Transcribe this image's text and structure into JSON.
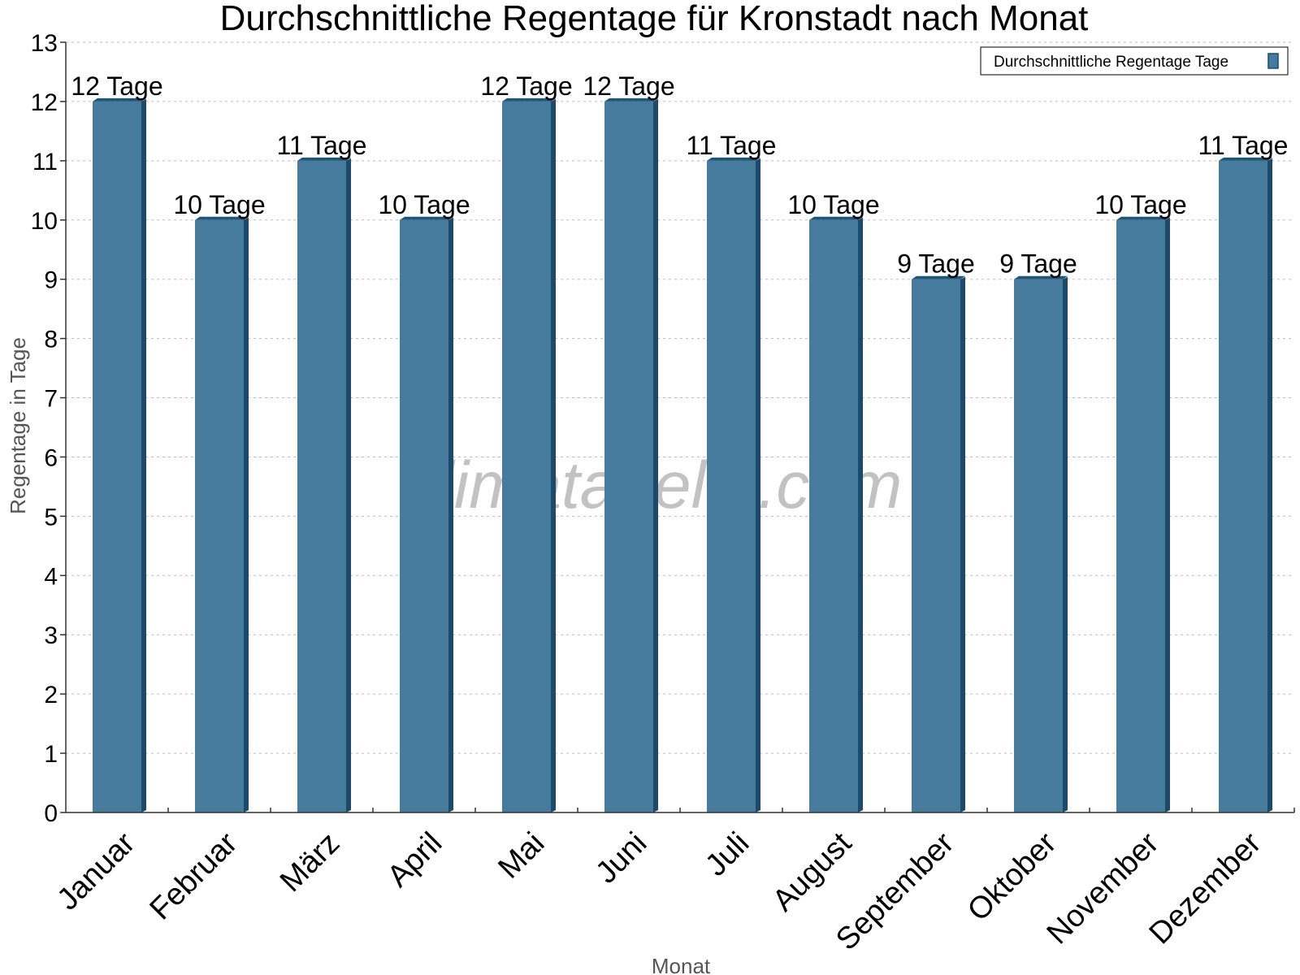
{
  "chart_data": {
    "type": "bar",
    "title": "Durchschnittliche Regentage für Kronstadt nach Monat",
    "xlabel": "Monat",
    "ylabel": "Regentage in Tage",
    "categories": [
      "Januar",
      "Februar",
      "März",
      "April",
      "Mai",
      "Juni",
      "Juli",
      "August",
      "September",
      "Oktober",
      "November",
      "Dezember"
    ],
    "series": [
      {
        "name": "Durchschnittliche Regentage Tage",
        "values": [
          12,
          10,
          11,
          10,
          12,
          12,
          11,
          10,
          9,
          9,
          10,
          11
        ],
        "labels": [
          "12 Tage",
          "10 Tage",
          "11 Tage",
          "10 Tage",
          "12 Tage",
          "12 Tage",
          "11 Tage",
          "10 Tage",
          "9 Tage",
          "9 Tage",
          "10 Tage",
          "11 Tage"
        ]
      }
    ],
    "ylim": [
      0,
      13
    ],
    "yticks": [
      0,
      1,
      2,
      3,
      4,
      5,
      6,
      7,
      8,
      9,
      10,
      11,
      12,
      13
    ],
    "grid": true,
    "legend_position": "top-right"
  },
  "watermark": "klimatabelle.com",
  "colors": {
    "bar": "#467b9d",
    "bar_side": "#1b4a6b",
    "bar_top": "#1f5577"
  }
}
